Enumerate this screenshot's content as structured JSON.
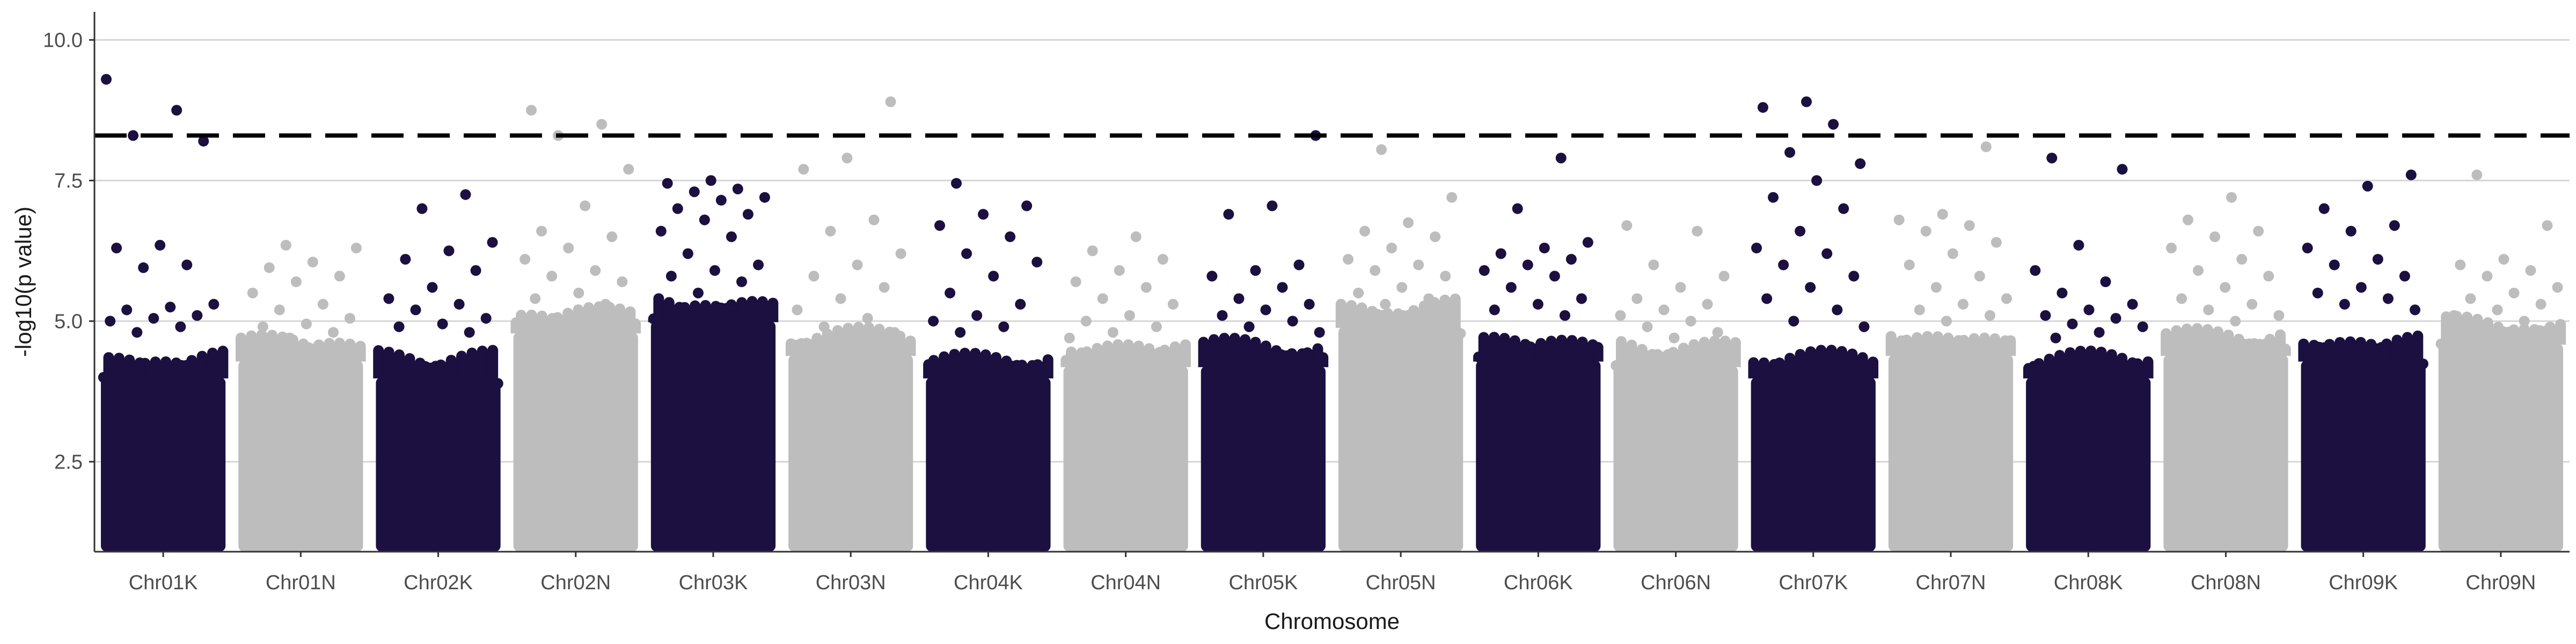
{
  "chart_data": {
    "type": "scatter",
    "subtype": "manhattan",
    "title": "",
    "xlabel": "Chromosome",
    "ylabel": "-log10(p value)",
    "ylim": [
      0.9,
      10.5
    ],
    "yticks": [
      2.5,
      5.0,
      7.5,
      10.0
    ],
    "ytick_labels": [
      "2.5",
      "5.0",
      "7.5",
      "10.0"
    ],
    "grid": "horizontal",
    "threshold": {
      "value": 8.3,
      "style": "dashed",
      "color": "#000000"
    },
    "colors": {
      "K": "#1b1040",
      "N": "#bdbdbd"
    },
    "point_floor": 1.0,
    "chromosomes": [
      {
        "name": "Chr01K",
        "color_group": "K",
        "bulk_top": 4.0,
        "top_points": [
          9.3,
          8.75,
          8.3,
          8.2,
          6.35,
          6.3,
          6.0,
          5.95,
          5.3,
          5.25,
          5.2,
          5.1,
          5.05,
          5.0,
          4.9,
          4.8
        ]
      },
      {
        "name": "Chr01N",
        "color_group": "N",
        "bulk_top": 4.3,
        "top_points": [
          6.35,
          6.3,
          6.05,
          5.95,
          5.8,
          5.7,
          5.5,
          5.3,
          5.2,
          5.05,
          4.95,
          4.9,
          4.8,
          4.7
        ]
      },
      {
        "name": "Chr02K",
        "color_group": "K",
        "bulk_top": 4.0,
        "top_points": [
          7.25,
          7.0,
          6.4,
          6.25,
          6.1,
          5.9,
          5.6,
          5.4,
          5.3,
          5.2,
          5.05,
          4.95,
          4.9,
          4.8
        ]
      },
      {
        "name": "Chr02N",
        "color_group": "N",
        "bulk_top": 4.8,
        "top_points": [
          8.75,
          8.5,
          8.3,
          7.7,
          7.05,
          6.6,
          6.5,
          6.3,
          6.1,
          5.9,
          5.8,
          5.7,
          5.5,
          5.4,
          5.3
        ]
      },
      {
        "name": "Chr03K",
        "color_group": "K",
        "bulk_top": 5.0,
        "top_points": [
          7.5,
          7.45,
          7.35,
          7.3,
          7.2,
          7.15,
          7.0,
          6.9,
          6.8,
          6.6,
          6.5,
          6.2,
          6.0,
          5.9,
          5.8,
          5.7,
          5.5
        ]
      },
      {
        "name": "Chr03N",
        "color_group": "N",
        "bulk_top": 4.4,
        "top_points": [
          8.9,
          7.9,
          7.7,
          6.8,
          6.6,
          6.2,
          6.0,
          5.8,
          5.6,
          5.4,
          5.2,
          5.05,
          4.9,
          4.8
        ]
      },
      {
        "name": "Chr04K",
        "color_group": "K",
        "bulk_top": 4.0,
        "top_points": [
          7.45,
          7.05,
          6.9,
          6.7,
          6.5,
          6.2,
          6.05,
          5.8,
          5.5,
          5.3,
          5.1,
          5.0,
          4.9,
          4.8
        ]
      },
      {
        "name": "Chr04N",
        "color_group": "N",
        "bulk_top": 4.2,
        "top_points": [
          6.5,
          6.25,
          6.1,
          5.9,
          5.7,
          5.6,
          5.4,
          5.3,
          5.1,
          5.0,
          4.9,
          4.8,
          4.7
        ]
      },
      {
        "name": "Chr05K",
        "color_group": "K",
        "bulk_top": 4.2,
        "top_points": [
          8.3,
          7.05,
          6.9,
          6.0,
          5.9,
          5.8,
          5.6,
          5.4,
          5.3,
          5.2,
          5.1,
          5.0,
          4.9,
          4.8
        ]
      },
      {
        "name": "Chr05N",
        "color_group": "N",
        "bulk_top": 4.9,
        "top_points": [
          8.05,
          7.2,
          6.75,
          6.6,
          6.5,
          6.3,
          6.1,
          6.0,
          5.9,
          5.8,
          5.6,
          5.5,
          5.4,
          5.3
        ]
      },
      {
        "name": "Chr06K",
        "color_group": "K",
        "bulk_top": 4.3,
        "top_points": [
          7.9,
          7.0,
          6.4,
          6.3,
          6.2,
          6.1,
          6.0,
          5.9,
          5.8,
          5.6,
          5.4,
          5.3,
          5.2,
          5.1
        ]
      },
      {
        "name": "Chr06N",
        "color_group": "N",
        "bulk_top": 4.2,
        "top_points": [
          6.7,
          6.6,
          6.0,
          5.8,
          5.6,
          5.4,
          5.3,
          5.2,
          5.1,
          5.0,
          4.9,
          4.8,
          4.7
        ]
      },
      {
        "name": "Chr07K",
        "color_group": "K",
        "bulk_top": 4.0,
        "top_points": [
          8.9,
          8.8,
          8.5,
          8.0,
          7.8,
          7.5,
          7.2,
          7.0,
          6.6,
          6.3,
          6.2,
          6.0,
          5.8,
          5.6,
          5.4,
          5.2,
          5.0,
          4.9
        ]
      },
      {
        "name": "Chr07N",
        "color_group": "N",
        "bulk_top": 4.4,
        "top_points": [
          8.1,
          6.9,
          6.8,
          6.7,
          6.6,
          6.4,
          6.2,
          6.0,
          5.8,
          5.6,
          5.4,
          5.3,
          5.2,
          5.1,
          5.0
        ]
      },
      {
        "name": "Chr08K",
        "color_group": "K",
        "bulk_top": 4.0,
        "top_points": [
          7.9,
          7.7,
          6.35,
          5.9,
          5.7,
          5.5,
          5.3,
          5.2,
          5.1,
          5.05,
          4.95,
          4.9,
          4.8,
          4.7
        ]
      },
      {
        "name": "Chr08N",
        "color_group": "N",
        "bulk_top": 4.4,
        "top_points": [
          7.2,
          6.8,
          6.6,
          6.5,
          6.3,
          6.1,
          5.9,
          5.8,
          5.6,
          5.4,
          5.3,
          5.2,
          5.1,
          5.0
        ]
      },
      {
        "name": "Chr09K",
        "color_group": "K",
        "bulk_top": 4.3,
        "top_points": [
          7.6,
          7.4,
          7.0,
          6.7,
          6.6,
          6.3,
          6.1,
          6.0,
          5.8,
          5.6,
          5.5,
          5.4,
          5.3,
          5.2
        ]
      },
      {
        "name": "Chr09N",
        "color_group": "N",
        "bulk_top": 4.6,
        "top_points": [
          7.6,
          6.7,
          6.1,
          6.0,
          5.9,
          5.8,
          5.6,
          5.5,
          5.4,
          5.3,
          5.2,
          5.1,
          5.0,
          4.9
        ]
      }
    ]
  }
}
